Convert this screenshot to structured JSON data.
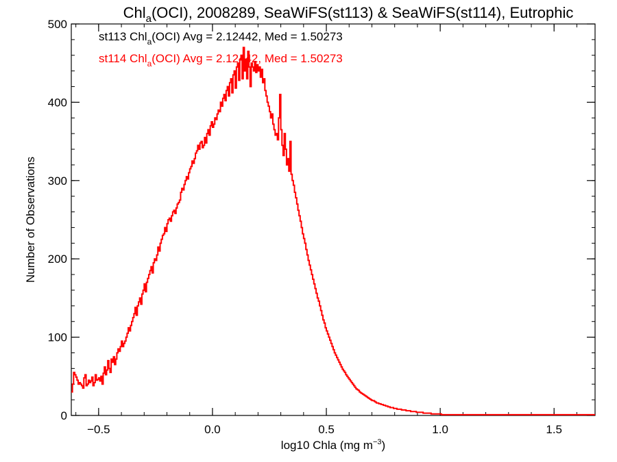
{
  "chart_data": {
    "type": "histogram",
    "title": {
      "prefix": "Chl",
      "sub": "a",
      "suffix": "(OCI), 2008289, SeaWiFS(st113) & SeaWiFS(st114), Eutrophic"
    },
    "xlabel": {
      "main": "log10 Chla (mg m",
      "sup": "−3",
      "close": ")"
    },
    "ylabel": "Number of Observations",
    "xlim": [
      -0.62,
      1.68
    ],
    "ylim": [
      0,
      500
    ],
    "xticks": [
      -0.5,
      0.0,
      0.5,
      1.0,
      1.5
    ],
    "xtick_labels": [
      "−0.5",
      "0.0",
      "0.5",
      "1.0",
      "1.5"
    ],
    "yticks": [
      0,
      100,
      200,
      300,
      400,
      500
    ],
    "ytick_labels": [
      "0",
      "100",
      "200",
      "300",
      "400",
      "500"
    ],
    "annotations": [
      {
        "pre": "st113 Chl",
        "sub": "a",
        "post": "(OCI) Avg = 2.12442, Med = 1.50273",
        "color": "#000000"
      },
      {
        "pre": "st114 Chl",
        "sub": "a",
        "post": "(OCI) Avg = 2.12442, Med = 1.50273",
        "color": "#ff0000"
      }
    ],
    "series": [
      {
        "color": "#ff0000",
        "bin_start": -0.62,
        "bin_width": 0.005,
        "counts": [
          30,
          40,
          55,
          52,
          49,
          45,
          40,
          42,
          40,
          38,
          35,
          48,
          52,
          38,
          40,
          45,
          42,
          44,
          49,
          38,
          42,
          52,
          45,
          46,
          48,
          44,
          50,
          40,
          54,
          62,
          52,
          58,
          70,
          60,
          55,
          72,
          68,
          75,
          65,
          72,
          80,
          85,
          82,
          88,
          95,
          88,
          92,
          95,
          100,
          105,
          112,
          108,
          115,
          120,
          125,
          130,
          138,
          128,
          140,
          145,
          150,
          142,
          155,
          160,
          168,
          158,
          170,
          175,
          180,
          185,
          190,
          182,
          195,
          200,
          198,
          205,
          215,
          210,
          220,
          225,
          230,
          232,
          240,
          235,
          245,
          250,
          252,
          248,
          255,
          260,
          262,
          258,
          265,
          270,
          272,
          275,
          285,
          290,
          288,
          295,
          300,
          305,
          302,
          310,
          315,
          318,
          325,
          322,
          328,
          335,
          338,
          345,
          340,
          348,
          350,
          342,
          345,
          355,
          348,
          360,
          365,
          358,
          370,
          375,
          368,
          372,
          380,
          378,
          385,
          390,
          388,
          400,
          395,
          405,
          410,
          402,
          415,
          420,
          408,
          425,
          430,
          412,
          435,
          440,
          418,
          445,
          450,
          428,
          455,
          460,
          430,
          470,
          440,
          455,
          430,
          465,
          445,
          420,
          450,
          445,
          440,
          452,
          438,
          448,
          440,
          445,
          432,
          442,
          425,
          430,
          415,
          408,
          400,
          395,
          388,
          380,
          385,
          372,
          365,
          358,
          360,
          352,
          380,
          410,
          365,
          345,
          332,
          360,
          340,
          320,
          328,
          312,
          350,
          308,
          300,
          294,
          285,
          278,
          270,
          262,
          255,
          248,
          240,
          232,
          226,
          220,
          212,
          205,
          198,
          192,
          186,
          180,
          174,
          168,
          162,
          156,
          150,
          146,
          140,
          134,
          128,
          122,
          118,
          112,
          108,
          104,
          100,
          96,
          92,
          88,
          84,
          80,
          77,
          74,
          71,
          68,
          65,
          62,
          59,
          57,
          55,
          52,
          50,
          48,
          46,
          44,
          42,
          40,
          38,
          36,
          34,
          33,
          32,
          30,
          29,
          28,
          27,
          26,
          25,
          24,
          23,
          22,
          21,
          20,
          19,
          19,
          18,
          17,
          16,
          16,
          15,
          15,
          14,
          14,
          13,
          13,
          12,
          12,
          11,
          11,
          10,
          10,
          10,
          9,
          9,
          9,
          8,
          8,
          8,
          8,
          7,
          7,
          7,
          7,
          6,
          6,
          6,
          6,
          5,
          5,
          5,
          5,
          5,
          4,
          4,
          4,
          4,
          4,
          4,
          3,
          3,
          3,
          3,
          3,
          3,
          3,
          2,
          2,
          2,
          2,
          2,
          2,
          2,
          2,
          2,
          1,
          1,
          1,
          1,
          1,
          1,
          1,
          1,
          1,
          1,
          1,
          1,
          1,
          1,
          1,
          1,
          1,
          1,
          1,
          1,
          1,
          1,
          1,
          1,
          1,
          1,
          1,
          1,
          1,
          1,
          1,
          1,
          1,
          1,
          1,
          1,
          1,
          1,
          1,
          1,
          1,
          1,
          1,
          1,
          1,
          1,
          1,
          1,
          1,
          1,
          1,
          1,
          1,
          1,
          1,
          1,
          1,
          1,
          1,
          1,
          1,
          1,
          1,
          1,
          1,
          1,
          1,
          1,
          1,
          1,
          1,
          1,
          1,
          1,
          1,
          1,
          1,
          1,
          1,
          1,
          1,
          1,
          1,
          1,
          1,
          1,
          1,
          1,
          1,
          1,
          1,
          1,
          1,
          1,
          1,
          1,
          1,
          1,
          1,
          1,
          1,
          1,
          1,
          1,
          1,
          1,
          1,
          1,
          1,
          1,
          1,
          1,
          1,
          1,
          1,
          1,
          1,
          1,
          1,
          1,
          1,
          1,
          1,
          1,
          1,
          1,
          1,
          1,
          1,
          1,
          1,
          1,
          1,
          1,
          1,
          1,
          1,
          1,
          1,
          1,
          1,
          1,
          1,
          1,
          1,
          1,
          1,
          1,
          1,
          1,
          1
        ]
      }
    ]
  }
}
